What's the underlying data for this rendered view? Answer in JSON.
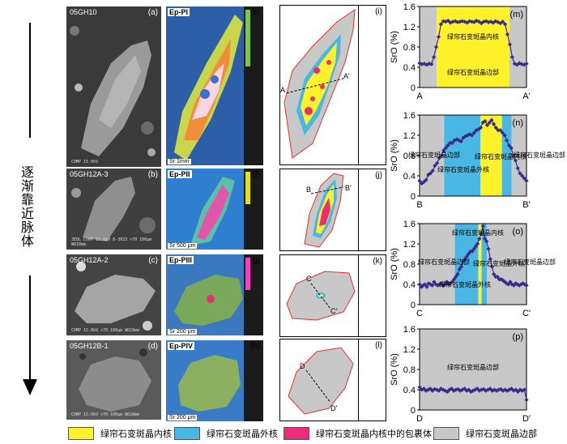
{
  "figure": {
    "vertical_label": "逐渐靠近脉体",
    "rows": [
      {
        "sample": "05GH10",
        "bse_tag": "(a)",
        "map_label": "Ep-PI",
        "map_tag": "(e)",
        "map_scale": "Sr 1mm",
        "sketch_tag": "(i)",
        "plot_tag": "(m)",
        "start": "A",
        "end": "A'",
        "bse_meta": "COMP 15.0kV"
      },
      {
        "sample": "05GH12A-3",
        "bse_tag": "(b)",
        "map_label": "Ep-PII",
        "map_tag": "(f)",
        "map_scale": "Sr 500 μm",
        "sketch_tag": "(j)",
        "plot_tag": "(n)",
        "start": "B",
        "end": "B'",
        "bse_meta": "JEOL COMP 15.0kV 8-3023 ×70 100μm WD10mm"
      },
      {
        "sample": "05GH12A-2",
        "bse_tag": "(c)",
        "map_label": "Ep-PIII",
        "map_tag": "(g)",
        "map_scale": "Sr 200 μm",
        "sketch_tag": "(k)",
        "plot_tag": "(o)",
        "start": "C",
        "end": "C'",
        "bse_meta": "COMP 15.0kV ×70 100μm WD10mm"
      },
      {
        "sample": "05GH12B-1",
        "bse_tag": "(d)",
        "map_label": "Ep-PIV",
        "map_tag": "(h)",
        "map_scale": "Sr 200 μm",
        "sketch_tag": "(l)",
        "plot_tag": "(p)",
        "start": "D",
        "end": "D'",
        "bse_meta": "COMP 15.0kV ×70 100μm WD10mm"
      }
    ],
    "legend": [
      {
        "label": "绿帘石变斑晶内核",
        "color": "#fff22b"
      },
      {
        "label": "绿帘石变斑晶外核",
        "color": "#48b7e3"
      },
      {
        "label": "绿帘石变斑晶内核中的包裹体",
        "color": "#ee2a7b"
      },
      {
        "label": "绿帘石变斑晶边部",
        "color": "#c8c8c8"
      }
    ]
  },
  "chart_data": [
    {
      "type": "line",
      "panel": "(m)",
      "ylabel": "SrO (%)",
      "ylim": [
        0,
        1.6
      ],
      "yticks": [
        "0",
        "0.4",
        "0.8",
        "1.2",
        "1.6"
      ],
      "xstart": "A",
      "xend": "A'",
      "zones": [
        {
          "from": 0.0,
          "to": 0.16,
          "fill": "#c8c8c8"
        },
        {
          "from": 0.16,
          "to": 0.84,
          "fill": "#fff22b"
        },
        {
          "from": 0.84,
          "to": 1.0,
          "fill": "#c8c8c8"
        }
      ],
      "annotations": [
        "绿帘石变斑晶内核",
        "绿帘石变斑晶边部"
      ],
      "values": [
        0.48,
        0.46,
        0.47,
        0.45,
        0.47,
        0.46,
        0.6,
        0.8,
        1.0,
        1.25,
        1.31,
        1.3,
        1.32,
        1.28,
        1.3,
        1.31,
        1.29,
        1.3,
        1.31,
        1.3,
        1.28,
        1.31,
        1.3,
        1.29,
        1.32,
        1.3,
        1.27,
        1.3,
        1.31,
        1.29,
        1.3,
        1.28,
        1.31,
        1.29,
        1.27,
        1.3,
        1.25,
        1.05,
        0.85,
        0.6,
        0.47,
        0.45,
        0.48,
        0.46,
        0.45,
        0.47
      ]
    },
    {
      "type": "line",
      "panel": "(n)",
      "ylabel": "SrO (%)",
      "ylim": [
        0,
        1.6
      ],
      "yticks": [
        "0",
        "0.4",
        "0.8",
        "1.2",
        "1.6"
      ],
      "xstart": "B",
      "xend": "B'",
      "zones": [
        {
          "from": 0.0,
          "to": 0.23,
          "fill": "#c8c8c8"
        },
        {
          "from": 0.23,
          "to": 0.57,
          "fill": "#48b7e3"
        },
        {
          "from": 0.57,
          "to": 0.77,
          "fill": "#fff22b"
        },
        {
          "from": 0.77,
          "to": 0.86,
          "fill": "#48b7e3"
        },
        {
          "from": 0.86,
          "to": 1.0,
          "fill": "#c8c8c8"
        }
      ],
      "annotations": [
        "绿帘石变斑晶边部",
        "绿帘石变斑晶外核",
        "绿帘石变斑晶内核",
        "绿帘石变斑晶边部"
      ],
      "values": [
        0.3,
        0.25,
        0.28,
        0.32,
        0.42,
        0.45,
        0.5,
        0.6,
        0.65,
        0.75,
        0.8,
        0.9,
        0.95,
        1.0,
        1.05,
        1.05,
        1.1,
        1.12,
        1.1,
        1.08,
        1.15,
        1.18,
        1.2,
        1.22,
        1.2,
        1.25,
        1.3,
        1.32,
        1.35,
        1.45,
        1.48,
        1.4,
        1.45,
        1.5,
        1.42,
        1.35,
        1.3,
        1.3,
        1.25,
        1.2,
        1.1,
        1.0,
        0.95,
        0.8,
        0.7,
        0.55,
        0.45,
        0.4,
        0.35,
        0.3
      ]
    },
    {
      "type": "line",
      "panel": "(o)",
      "ylabel": "SrO (%)",
      "ylim": [
        0,
        1.6
      ],
      "yticks": [
        "0",
        "0.4",
        "0.8",
        "1.2",
        "1.6"
      ],
      "xstart": "C",
      "xend": "C'",
      "zones": [
        {
          "from": 0.0,
          "to": 0.33,
          "fill": "#c8c8c8"
        },
        {
          "from": 0.33,
          "to": 0.55,
          "fill": "#48b7e3"
        },
        {
          "from": 0.55,
          "to": 0.58,
          "fill": "#fff22b"
        },
        {
          "from": 0.58,
          "to": 0.63,
          "fill": "#48b7e3"
        },
        {
          "from": 0.63,
          "to": 1.0,
          "fill": "#c8c8c8"
        }
      ],
      "annotations": [
        "绿帘石变斑晶边部",
        "绿帘石变斑晶外核",
        "绿帘石变斑晶内核",
        "绿帘石变斑晶外核",
        "绿帘石变斑晶边部"
      ],
      "values": [
        0.4,
        0.35,
        0.38,
        0.4,
        0.35,
        0.42,
        0.4,
        0.38,
        0.45,
        0.4,
        0.38,
        0.4,
        0.42,
        0.38,
        0.4,
        0.45,
        0.4,
        0.42,
        0.45,
        0.5,
        0.55,
        0.6,
        0.7,
        0.75,
        0.85,
        0.9,
        0.95,
        1.0,
        1.05,
        1.05,
        1.1,
        1.15,
        1.2,
        1.3,
        1.4,
        1.55,
        1.3,
        1.25,
        1.1,
        0.9,
        0.75,
        0.6,
        0.55,
        0.55,
        0.5,
        0.5,
        0.48,
        0.45,
        0.42,
        0.4,
        0.45,
        0.4,
        0.38,
        0.42,
        0.4,
        0.38,
        0.4,
        0.42,
        0.4,
        0.38
      ]
    },
    {
      "type": "line",
      "panel": "(p)",
      "ylabel": "SrO (%)",
      "ylim": [
        0,
        1.6
      ],
      "yticks": [
        "0",
        "0.4",
        "0.8",
        "1.2",
        "1.6"
      ],
      "xstart": "D",
      "xend": "D'",
      "zones": [
        {
          "from": 0.0,
          "to": 1.0,
          "fill": "#c8c8c8"
        }
      ],
      "annotations": [
        "绿帘石变斑晶边部"
      ],
      "values": [
        0.45,
        0.4,
        0.42,
        0.38,
        0.4,
        0.42,
        0.38,
        0.41,
        0.4,
        0.38,
        0.42,
        0.4,
        0.38,
        0.36,
        0.4,
        0.42,
        0.38,
        0.4,
        0.41,
        0.38,
        0.4,
        0.42,
        0.38,
        0.4,
        0.36,
        0.38,
        0.4,
        0.42,
        0.38,
        0.4,
        0.41,
        0.38,
        0.4,
        0.42,
        0.38,
        0.4,
        0.38,
        0.4,
        0.41,
        0.38,
        0.4,
        0.38,
        0.4,
        0.42,
        0.38,
        0.4,
        0.36,
        0.4,
        0.38,
        0.4,
        0.2
      ]
    }
  ]
}
